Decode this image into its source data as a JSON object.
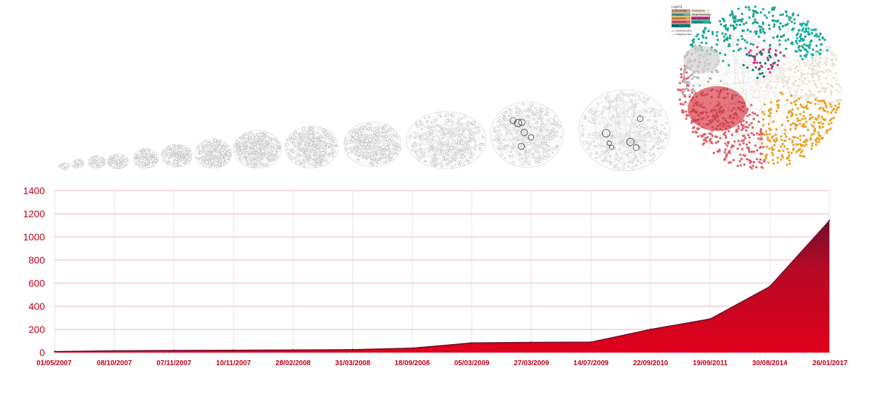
{
  "chart_data": {
    "type": "area",
    "title": "",
    "xlabel": "",
    "ylabel": "",
    "categories": [
      "01/05/2007",
      "08/10/2007",
      "07/11/2007",
      "10/11/2007",
      "28/02/2008",
      "31/03/2008",
      "18/09/2008",
      "05/03/2009",
      "27/03/2009",
      "14/07/2009",
      "22/09/2010",
      "19/09/2011",
      "30/08/2014",
      "26/01/2017"
    ],
    "series": [
      {
        "values": [
          8,
          15,
          18,
          20,
          22,
          25,
          38,
          83,
          88,
          90,
          200,
          290,
          570,
          1140
        ]
      }
    ],
    "ylim": [
      0,
      1400
    ],
    "yticks": [
      0,
      200,
      400,
      600,
      800,
      1000,
      1200,
      1400
    ],
    "grid": true,
    "legend": "none",
    "colors": {
      "fill_top": "#6e0f2c",
      "fill_bottom": "#e0001b",
      "grid_h": "#f2b6c0",
      "grid_v": "#e6e6e6",
      "tick_text": "#c0001a"
    }
  },
  "graph_legend": {
    "heading": "Legend",
    "items": [
      {
        "label": "Cross-domain",
        "color": "#d8a27a"
      },
      {
        "label": "Publications",
        "color": "#f0ead6"
      },
      {
        "label": "Geography",
        "color": "#63b3a8"
      },
      {
        "label": "Social Networking",
        "color": "#e6e0cf"
      },
      {
        "label": "Government",
        "color": "#e8a533"
      },
      {
        "label": "User-generated",
        "color": "#d62f8a"
      },
      {
        "label": "Life Sciences",
        "color": "#e0606b"
      },
      {
        "label": "Linguistics",
        "color": "#14b39c"
      },
      {
        "label": "Media",
        "color": "#0f7a76"
      }
    ],
    "incoming": "Incoming Links",
    "outgoing": "Outgoing Links"
  }
}
